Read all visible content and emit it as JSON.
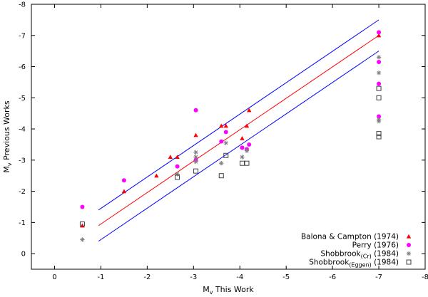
{
  "chart_data": {
    "type": "scatter",
    "title": "",
    "xlabel": {
      "main": "M",
      "sub": "v",
      "rest": " This Work"
    },
    "ylabel": {
      "main": "M",
      "sub": "v",
      "rest": " Previous Works"
    },
    "xlim": [
      0.5,
      -8
    ],
    "ylim": [
      0.5,
      -8
    ],
    "x_ticks": [
      0,
      -1,
      -2,
      -3,
      -4,
      -5,
      -6,
      -7,
      -8
    ],
    "y_ticks": [
      0,
      -1,
      -2,
      -3,
      -4,
      -5,
      -6,
      -7,
      -8
    ],
    "grid": false,
    "legend_position": "bottom-right",
    "lines": [
      {
        "name": "one-to-one",
        "color": "#ff0000",
        "x": [
          -0.95,
          -7
        ],
        "y": [
          -0.9,
          -7.0
        ]
      },
      {
        "name": "upper-envelope",
        "color": "#0000ff",
        "x": [
          -0.95,
          -7
        ],
        "y": [
          -1.4,
          -7.5
        ]
      },
      {
        "name": "lower-envelope",
        "color": "#0000ff",
        "x": [
          -0.95,
          -7
        ],
        "y": [
          -0.4,
          -6.5
        ]
      }
    ],
    "series": [
      {
        "name": "Balona & Campton (1974)",
        "label_main": "Balona & Campton (1974)",
        "label_sub": "",
        "label_rest": "",
        "marker": "triangle",
        "color": "#ff0000",
        "points": [
          [
            -0.6,
            -0.9
          ],
          [
            -1.5,
            -2.0
          ],
          [
            -2.2,
            -2.5
          ],
          [
            -2.5,
            -3.1
          ],
          [
            -2.65,
            -3.1
          ],
          [
            -3.05,
            -3.8
          ],
          [
            -3.05,
            -3.05
          ],
          [
            -3.6,
            -4.1
          ],
          [
            -3.7,
            -4.1
          ],
          [
            -4.05,
            -3.7
          ],
          [
            -4.15,
            -4.1
          ],
          [
            -4.2,
            -4.6
          ],
          [
            -7.0,
            -7.0
          ]
        ]
      },
      {
        "name": "Perry (1976)",
        "label_main": "Perry (1976)",
        "label_sub": "",
        "label_rest": "",
        "marker": "circle",
        "color": "#ff00ff",
        "points": [
          [
            -0.6,
            -1.5
          ],
          [
            -1.5,
            -2.35
          ],
          [
            -2.65,
            -2.8
          ],
          [
            -3.05,
            -4.6
          ],
          [
            -3.05,
            -3.0
          ],
          [
            -3.6,
            -3.6
          ],
          [
            -3.7,
            -3.9
          ],
          [
            -4.05,
            -3.4
          ],
          [
            -4.2,
            -3.5
          ],
          [
            -4.15,
            -3.35
          ],
          [
            -7.0,
            -7.1
          ],
          [
            -7.0,
            -6.15
          ],
          [
            -7.0,
            -5.45
          ],
          [
            -7.0,
            -4.4
          ]
        ]
      },
      {
        "name": "Shobbrook (Cr) (1984)",
        "label_main": "Shobbrook",
        "label_sub": "(Cr)",
        "label_rest": " (1984)",
        "marker": "star",
        "color": "#808080",
        "points": [
          [
            -0.6,
            -0.45
          ],
          [
            -2.65,
            -2.55
          ],
          [
            -3.05,
            -3.25
          ],
          [
            -3.05,
            -3.1
          ],
          [
            -3.05,
            -2.95
          ],
          [
            -3.6,
            -2.9
          ],
          [
            -3.7,
            -3.55
          ],
          [
            -4.05,
            -3.1
          ],
          [
            -4.15,
            -3.3
          ],
          [
            -7.0,
            -6.3
          ],
          [
            -7.0,
            -5.8
          ],
          [
            -7.0,
            -4.3
          ],
          [
            -7.0,
            -4.25
          ]
        ]
      },
      {
        "name": "Shobbrook (Eggen) (1984)",
        "label_main": "Shobbrook",
        "label_sub": "(Eggen)",
        "label_rest": " (1984)",
        "marker": "square",
        "color": "#404040",
        "points": [
          [
            -0.6,
            -0.95
          ],
          [
            -2.65,
            -2.45
          ],
          [
            -3.05,
            -2.65
          ],
          [
            -3.6,
            -2.5
          ],
          [
            -3.7,
            -3.15
          ],
          [
            -4.05,
            -2.9
          ],
          [
            -4.15,
            -2.9
          ],
          [
            -7.0,
            -5.3
          ],
          [
            -7.0,
            -5.0
          ],
          [
            -7.0,
            -3.85
          ],
          [
            -7.0,
            -3.75
          ]
        ]
      }
    ]
  }
}
